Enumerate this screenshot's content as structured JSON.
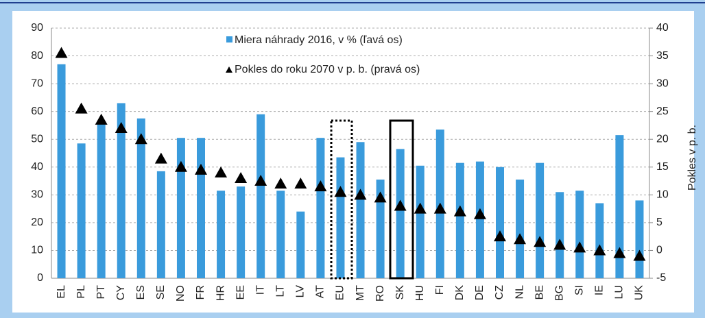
{
  "chart_data": {
    "type": "bar",
    "categories": [
      "EL",
      "PL",
      "PT",
      "CY",
      "ES",
      "SE",
      "NO",
      "FR",
      "HR",
      "EE",
      "IT",
      "LT",
      "LV",
      "AT",
      "EU",
      "MT",
      "RO",
      "SK",
      "HU",
      "FI",
      "DK",
      "DE",
      "CZ",
      "NL",
      "BE",
      "BG",
      "SI",
      "IE",
      "LU",
      "UK"
    ],
    "series": [
      {
        "name": "Miera náhrady 2016, v % (ľavá os)",
        "color": "#3a9bdc",
        "type": "bar",
        "values": [
          77,
          48.5,
          55.5,
          63,
          57.5,
          38.5,
          50.5,
          50.5,
          31.5,
          33,
          59,
          31.5,
          24,
          50.5,
          43.5,
          49,
          35.5,
          46.5,
          40.5,
          53.5,
          41.5,
          42,
          40,
          35.5,
          41.5,
          31,
          31.5,
          27,
          51.5,
          28
        ]
      },
      {
        "name": "Pokles do roku 2070 v p. b. (pravá os)",
        "color": "#000000",
        "type": "triangle",
        "axis": "y2",
        "values": [
          35.5,
          25.5,
          23.5,
          22,
          20,
          16.5,
          15,
          14.5,
          14,
          13,
          12.5,
          12,
          12,
          11.5,
          10.5,
          10,
          9.5,
          8,
          7.5,
          7.5,
          7,
          6.5,
          2.5,
          2,
          1.5,
          1,
          0.5,
          0,
          -0.5,
          -1
        ]
      }
    ],
    "y2label": "Pokles v p. b.",
    "ylim": [
      0,
      90
    ],
    "yticks": [
      0,
      10,
      20,
      30,
      40,
      50,
      60,
      70,
      80,
      90
    ],
    "y2lim": [
      -5,
      40
    ],
    "y2ticks": [
      -5,
      0,
      5,
      10,
      15,
      20,
      25,
      30,
      35,
      40
    ],
    "grid": true
  }
}
